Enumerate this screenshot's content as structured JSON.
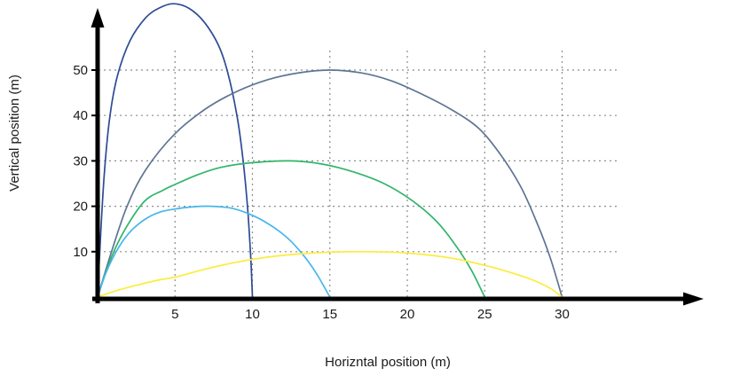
{
  "figure": {
    "background": "#ffffff"
  },
  "chart_data": {
    "type": "line",
    "title": "",
    "xlabel": "Horizntal position (m)",
    "ylabel": "Vertical position (m)",
    "x_ticks": [
      5,
      10,
      15,
      20,
      25,
      30
    ],
    "y_ticks": [
      10,
      20,
      30,
      40,
      50
    ],
    "xlim": [
      0,
      38
    ],
    "ylim": [
      0,
      68
    ],
    "grid": true,
    "grid_style": "dotted",
    "grid_color": "#8c8c8c",
    "axis_color": "#000000",
    "text_color": "#1a1a1a",
    "legend": null,
    "series": [
      {
        "name": "trajectory-navy",
        "color": "#2d4b96",
        "peak": [
          4.9,
          64.6
        ],
        "range": 10,
        "points": [
          [
            0,
            0
          ],
          [
            0.2,
            14
          ],
          [
            0.45,
            28
          ],
          [
            0.8,
            40
          ],
          [
            1.3,
            49
          ],
          [
            2.1,
            56.5
          ],
          [
            3.1,
            61.5
          ],
          [
            4,
            63.7
          ],
          [
            4.9,
            64.6
          ],
          [
            5.9,
            63.6
          ],
          [
            6.9,
            60.5
          ],
          [
            7.8,
            55.5
          ],
          [
            8.4,
            49.5
          ],
          [
            9,
            40
          ],
          [
            9.4,
            30
          ],
          [
            9.7,
            19
          ],
          [
            9.9,
            8
          ],
          [
            10,
            0
          ]
        ]
      },
      {
        "name": "trajectory-slate",
        "color": "#5f7494",
        "peak": [
          15,
          50
        ],
        "range": 30,
        "points": [
          [
            0,
            0
          ],
          [
            0.9,
            10
          ],
          [
            1.9,
            20
          ],
          [
            3.1,
            28
          ],
          [
            5,
            36
          ],
          [
            7,
            41.5
          ],
          [
            9,
            45.3
          ],
          [
            11,
            47.9
          ],
          [
            13,
            49.4
          ],
          [
            15,
            50
          ],
          [
            17,
            49.4
          ],
          [
            19,
            47.6
          ],
          [
            21,
            44.6
          ],
          [
            22.9,
            41.2
          ],
          [
            24.6,
            37.2
          ],
          [
            26,
            31.5
          ],
          [
            27.3,
            24.5
          ],
          [
            28.3,
            17
          ],
          [
            29.2,
            9
          ],
          [
            30,
            0
          ]
        ]
      },
      {
        "name": "trajectory-green",
        "color": "#31b56a",
        "peak": [
          12.5,
          30
        ],
        "range": 25,
        "points": [
          [
            0,
            0
          ],
          [
            0.8,
            8
          ],
          [
            1.7,
            14.5
          ],
          [
            3,
            21
          ],
          [
            4.2,
            23.5
          ],
          [
            5,
            24.8
          ],
          [
            6.5,
            27
          ],
          [
            8,
            28.6
          ],
          [
            10,
            29.6
          ],
          [
            12.5,
            30
          ],
          [
            14.5,
            29.3
          ],
          [
            16.5,
            27.6
          ],
          [
            18.5,
            25
          ],
          [
            20.3,
            21.3
          ],
          [
            21.8,
            17
          ],
          [
            23,
            12
          ],
          [
            24.1,
            6.2
          ],
          [
            25,
            0
          ]
        ]
      },
      {
        "name": "trajectory-cyan",
        "color": "#47b6ec",
        "peak": [
          7.4,
          20
        ],
        "range": 15,
        "points": [
          [
            0,
            0
          ],
          [
            0.5,
            5
          ],
          [
            1.2,
            10
          ],
          [
            2,
            14
          ],
          [
            3,
            17
          ],
          [
            4,
            18.7
          ],
          [
            5,
            19.4
          ],
          [
            6.2,
            19.9
          ],
          [
            7.4,
            20
          ],
          [
            8.6,
            19.6
          ],
          [
            9.8,
            18.3
          ],
          [
            11,
            16.2
          ],
          [
            12.2,
            13.2
          ],
          [
            13.2,
            9.6
          ],
          [
            14.1,
            5.4
          ],
          [
            15,
            0
          ]
        ]
      },
      {
        "name": "trajectory-yellow",
        "color": "#fcec3c",
        "peak": [
          17,
          10
        ],
        "range": 30,
        "points": [
          [
            0,
            0
          ],
          [
            1,
            1.2
          ],
          [
            2.5,
            2.6
          ],
          [
            4,
            3.8
          ],
          [
            5,
            4.4
          ],
          [
            7,
            6.2
          ],
          [
            9,
            7.7
          ],
          [
            11,
            8.8
          ],
          [
            13,
            9.5
          ],
          [
            15,
            9.9
          ],
          [
            17,
            10
          ],
          [
            19,
            9.9
          ],
          [
            21,
            9.4
          ],
          [
            23,
            8.5
          ],
          [
            25,
            7
          ],
          [
            26.5,
            5.6
          ],
          [
            28,
            3.9
          ],
          [
            29.2,
            2
          ],
          [
            30,
            0
          ]
        ]
      }
    ]
  }
}
